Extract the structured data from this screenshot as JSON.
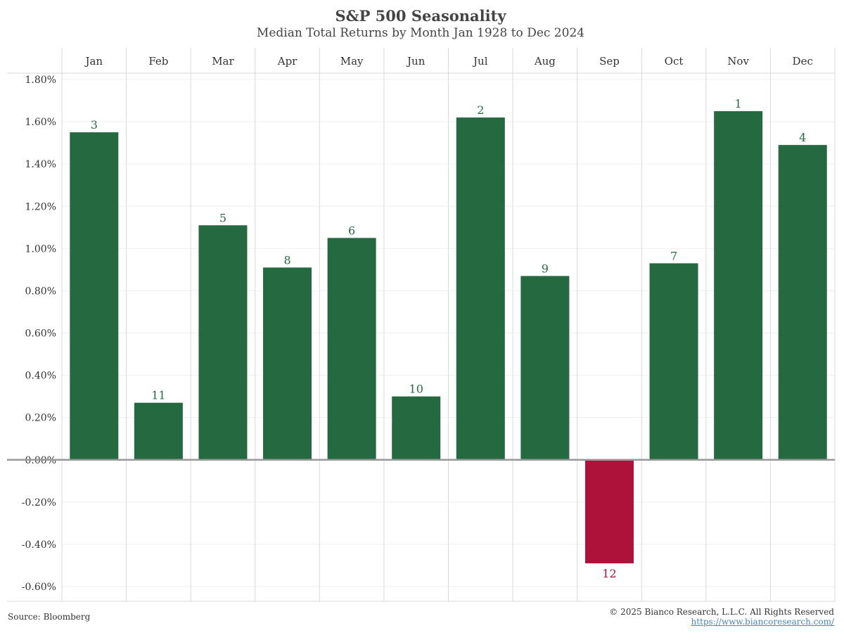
{
  "header": {
    "title": "S&P 500 Seasonality",
    "subtitle": "Median Total Returns by Month Jan 1928 to Dec 2024"
  },
  "footer": {
    "source": "Source: Bloomberg",
    "copyright": "© 2025 Bianco Research, L.L.C. All Rights Reserved",
    "website": "https://www.biancoresearch.com/"
  },
  "colors": {
    "positive": "#256940",
    "negative": "#ae123a",
    "grid": "#d9d9d9",
    "zero_line": "#999999"
  },
  "chart_data": {
    "type": "bar",
    "title": "S&P 500 Seasonality",
    "subtitle": "Median Total Returns by Month Jan 1928 to Dec 2024",
    "categories": [
      "Jan",
      "Feb",
      "Mar",
      "Apr",
      "May",
      "Jun",
      "Jul",
      "Aug",
      "Sep",
      "Oct",
      "Nov",
      "Dec"
    ],
    "values": [
      1.55,
      0.27,
      1.11,
      0.91,
      1.05,
      0.3,
      1.62,
      0.87,
      -0.49,
      0.93,
      1.65,
      1.49
    ],
    "value_unit": "%",
    "data_labels": [
      "3",
      "11",
      "5",
      "8",
      "6",
      "10",
      "2",
      "9",
      "12",
      "7",
      "1",
      "4"
    ],
    "ylim": [
      -0.6,
      1.8
    ],
    "yticks": [
      "1.80%",
      "1.60%",
      "1.40%",
      "1.20%",
      "1.00%",
      "0.80%",
      "0.60%",
      "0.40%",
      "0.20%",
      "0.00%",
      "-0.20%",
      "-0.40%",
      "-0.60%"
    ],
    "xlabel": "",
    "ylabel": "",
    "x_axis_position": "top",
    "grid": true,
    "legend": "none"
  }
}
